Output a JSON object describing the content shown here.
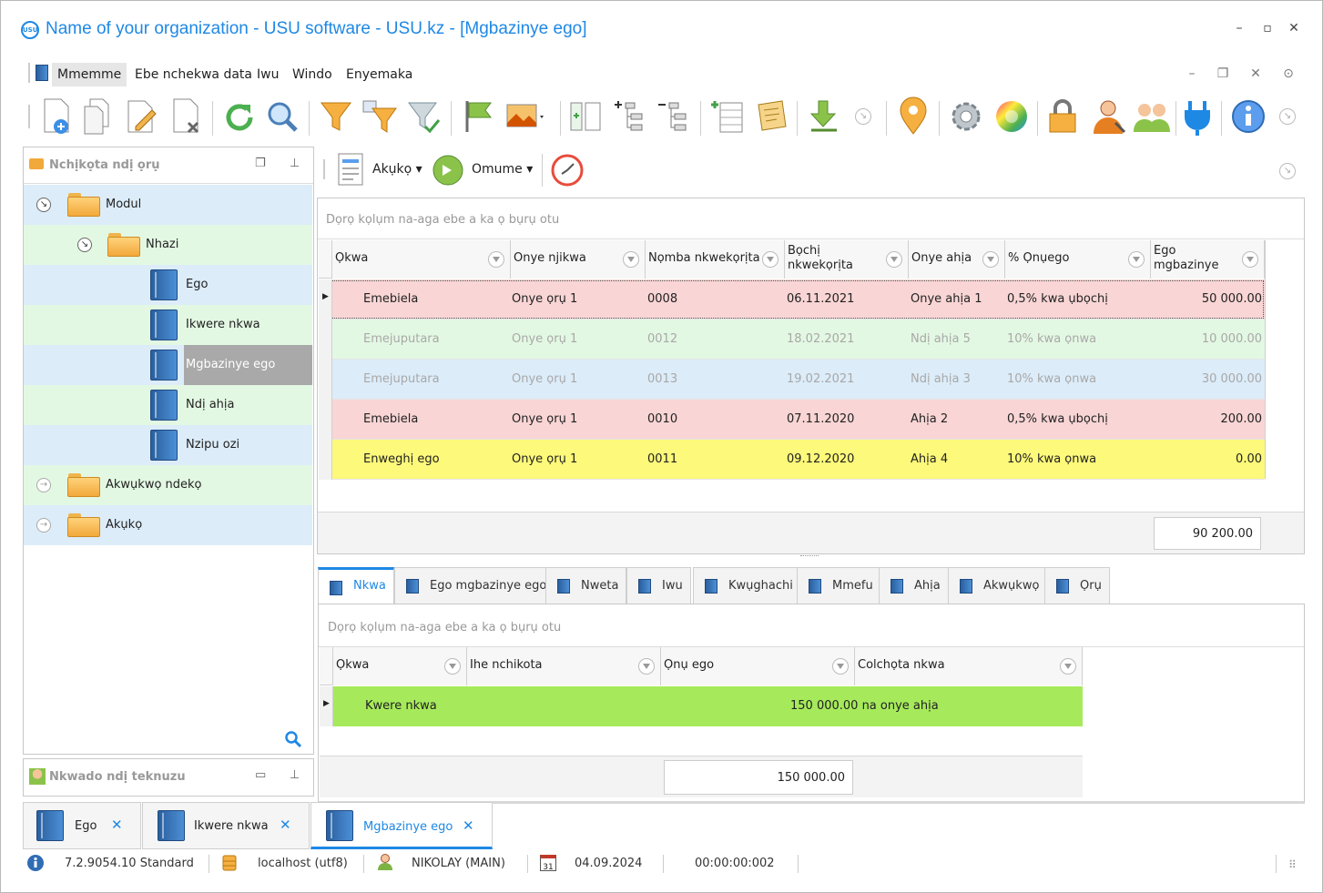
{
  "window": {
    "title": "Name of your organization - USU software - USU.kz - [Mgbazinye ego]",
    "logo_text": "USU"
  },
  "menu": {
    "items": [
      "Mmemme",
      "Ebe nchekwa data",
      "Iwu",
      "Windo",
      "Enyemaka"
    ]
  },
  "toolbar_icons": [
    "add-icon",
    "copy-icon",
    "edit-icon",
    "delete-icon",
    "refresh-icon",
    "search-icon",
    "filter-icon",
    "filter-edit-icon",
    "filter-apply-icon",
    "flag-icon",
    "image-icon",
    "expand-icon",
    "tree-expand-icon",
    "tree-collapse-icon",
    "add-row-icon",
    "notes-icon",
    "export-icon",
    "location-icon",
    "settings-icon",
    "color-wheel-icon",
    "lock-icon",
    "user-icon",
    "users-icon",
    "plug-icon",
    "info-icon"
  ],
  "left_panel": {
    "title": "Nchịkọta ndị ọrụ",
    "tree": [
      {
        "label": "Modul",
        "level": 0,
        "kind": "folder",
        "state": "expanded"
      },
      {
        "label": "Nhazi",
        "level": 1,
        "kind": "folder",
        "state": "expanded"
      },
      {
        "label": "Ego",
        "level": 2,
        "kind": "book"
      },
      {
        "label": "Ikwere nkwa",
        "level": 2,
        "kind": "book"
      },
      {
        "label": "Mgbazinye ego",
        "level": 2,
        "kind": "book",
        "selected": true
      },
      {
        "label": "Ndị ahịa",
        "level": 2,
        "kind": "book"
      },
      {
        "label": "Nzipu ozi",
        "level": 2,
        "kind": "book"
      },
      {
        "label": "Akwụkwọ ndekọ",
        "level": 0,
        "kind": "folder",
        "state": "collapsed"
      },
      {
        "label": "Akụkọ",
        "level": 0,
        "kind": "folder",
        "state": "collapsed"
      }
    ]
  },
  "tech_panel": {
    "title": "Nkwado ndị teknuzu"
  },
  "sub_toolbar": {
    "reports_label": "Akụkọ",
    "action_label": "Omume"
  },
  "main_grid": {
    "group_hint": "Dọrọ kọlụm na-aga ebe a ka ọ bụrụ otu",
    "columns": [
      "Ọkwa",
      "Onye njikwa",
      "Nọmba nkwekọrịta",
      "Bọchị nkwekọrịta",
      "Onye ahịa",
      "% Ọnụego",
      "Ego mgbazinye"
    ],
    "rows": [
      {
        "status": "Emebiela",
        "manager": "Onye ọrụ 1",
        "number": "0008",
        "date": "06.11.2021",
        "client": "Onye ahịa 1",
        "rate": "0,5% kwa ụbọchị",
        "amount": "50 000.00",
        "bg": "#f9d5d5",
        "fg": "#222",
        "selected": true
      },
      {
        "status": "Emejuputara",
        "manager": "Onye ọrụ 1",
        "number": "0012",
        "date": "18.02.2021",
        "client": "Ndị ahịa 5",
        "rate": "10% kwa ọnwa",
        "amount": "10 000.00",
        "bg": "#e3f8e3",
        "fg": "#a8a8a8"
      },
      {
        "status": "Emejuputara",
        "manager": "Onye ọrụ 1",
        "number": "0013",
        "date": "19.02.2021",
        "client": "Ndị ahịa 3",
        "rate": "10% kwa ọnwa",
        "amount": "30 000.00",
        "bg": "#dcecf9",
        "fg": "#a8a8a8"
      },
      {
        "status": "Emebiela",
        "manager": "Onye ọrụ 1",
        "number": "0010",
        "date": "07.11.2020",
        "client": "Ahịa 2",
        "rate": "0,5% kwa ụbọchị",
        "amount": "200.00",
        "bg": "#f9d5d5",
        "fg": "#222"
      },
      {
        "status": "Enweghị ego",
        "manager": "Onye ọrụ 1",
        "number": "0011",
        "date": "09.12.2020",
        "client": "Ahịa 4",
        "rate": "10% kwa ọnwa",
        "amount": "0.00",
        "bg": "#fdf97a",
        "fg": "#222"
      }
    ],
    "total": "90 200.00"
  },
  "detail_tabs": [
    "Nkwa",
    "Ego mgbazinye ego",
    "Nweta",
    "Iwu",
    "Kwụghachi",
    "Mmefu",
    "Ahịa",
    "Akwụkwọ",
    "Ọrụ"
  ],
  "detail_grid": {
    "group_hint": "Dọrọ kọlụm na-aga ebe a ka ọ bụrụ otu",
    "columns": [
      "Ọkwa",
      "Ihe nchikota",
      "Ọnụ ego",
      "Colchọta nkwa"
    ],
    "rows": [
      {
        "status": "Kwere nkwa",
        "summary": "",
        "value": "150 000.00 na onye ahịa",
        "note": ""
      }
    ],
    "total": "150 000.00"
  },
  "doc_tabs": [
    "Ego",
    "Ikwere nkwa",
    "Mgbazinye ego"
  ],
  "status_bar": {
    "version": "7.2.9054.10 Standard",
    "db": "localhost (utf8)",
    "user": "NIKOLAY (MAIN)",
    "calendar_day": "31",
    "date": "04.09.2024",
    "timer": "00:00:00:002"
  },
  "colors": {
    "accent": "#1e88e5",
    "row_green": "#a6ea5b"
  }
}
